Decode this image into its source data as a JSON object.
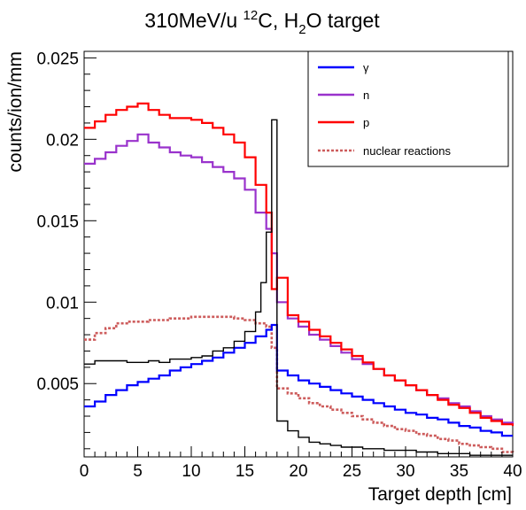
{
  "chart_data": {
    "type": "line",
    "style": "histogram-step",
    "title": {
      "main": "310MeV/u ",
      "c_sup": "12",
      "c_text": "C, H",
      "h_sub": "2",
      "tail": "O target"
    },
    "xlabel": "Target depth [cm]",
    "ylabel": "counts/ion/mm",
    "xlim": [
      0,
      40
    ],
    "ylim": [
      0.0005,
      0.0254
    ],
    "xticks": [
      0,
      5,
      10,
      15,
      20,
      25,
      30,
      35,
      40
    ],
    "xtick_labels": [
      "0",
      "5",
      "10",
      "15",
      "20",
      "25",
      "30",
      "35",
      "40"
    ],
    "yticks": [
      0.005,
      0.01,
      0.015,
      0.02,
      0.025
    ],
    "ytick_labels": [
      "0.005",
      "0.01",
      "0.015",
      "0.02",
      "0.025"
    ],
    "bin_width": 0.5,
    "grid": false,
    "legend_position": "top-right",
    "colors": {
      "gamma": "#0000ff",
      "n": "#9932cc",
      "p": "#ff0000",
      "nuclear": "#cd5c5c",
      "total": "#000000"
    },
    "series": [
      {
        "key": "gamma",
        "name": "γ",
        "bins": [
          [
            0,
            0.0036
          ],
          [
            1,
            0.0039
          ],
          [
            2,
            0.0043
          ],
          [
            3,
            0.0046
          ],
          [
            4,
            0.0049
          ],
          [
            5,
            0.0051
          ],
          [
            6,
            0.0053
          ],
          [
            7,
            0.0055
          ],
          [
            8,
            0.0058
          ],
          [
            9,
            0.006
          ],
          [
            10,
            0.0062
          ],
          [
            11,
            0.0064
          ],
          [
            12,
            0.0066
          ],
          [
            13,
            0.0069
          ],
          [
            14,
            0.0072
          ],
          [
            15,
            0.0075
          ],
          [
            16,
            0.0079
          ],
          [
            17,
            0.0083
          ],
          [
            17.5,
            0.0086
          ],
          [
            18,
            0.0058
          ],
          [
            19,
            0.0055
          ],
          [
            20,
            0.0052
          ],
          [
            21,
            0.005
          ],
          [
            22,
            0.0048
          ],
          [
            23,
            0.0046
          ],
          [
            24,
            0.0044
          ],
          [
            25,
            0.0042
          ],
          [
            26,
            0.004
          ],
          [
            27,
            0.0038
          ],
          [
            28,
            0.0036
          ],
          [
            29,
            0.0034
          ],
          [
            30,
            0.0032
          ],
          [
            31,
            0.0031
          ],
          [
            32,
            0.0029
          ],
          [
            33,
            0.0028
          ],
          [
            34,
            0.0026
          ],
          [
            35,
            0.0024
          ],
          [
            36,
            0.0023
          ],
          [
            37,
            0.0021
          ],
          [
            38,
            0.002
          ],
          [
            39,
            0.0018
          ],
          [
            40,
            0.0018
          ]
        ]
      },
      {
        "key": "n",
        "name": "n",
        "bins": [
          [
            0,
            0.0185
          ],
          [
            1,
            0.0188
          ],
          [
            2,
            0.0192
          ],
          [
            3,
            0.0196
          ],
          [
            4,
            0.0199
          ],
          [
            5,
            0.0203
          ],
          [
            6,
            0.0198
          ],
          [
            7,
            0.0195
          ],
          [
            8,
            0.0192
          ],
          [
            9,
            0.019
          ],
          [
            10,
            0.0189
          ],
          [
            11,
            0.0186
          ],
          [
            12,
            0.0183
          ],
          [
            13,
            0.018
          ],
          [
            14,
            0.0176
          ],
          [
            15,
            0.0169
          ],
          [
            16,
            0.0155
          ],
          [
            17,
            0.0145
          ],
          [
            17.5,
            0.013
          ],
          [
            18,
            0.01
          ],
          [
            19,
            0.009
          ],
          [
            20,
            0.0085
          ],
          [
            21,
            0.008
          ],
          [
            22,
            0.0077
          ],
          [
            23,
            0.0073
          ],
          [
            24,
            0.0069
          ],
          [
            25,
            0.0065
          ],
          [
            26,
            0.0062
          ],
          [
            27,
            0.0059
          ],
          [
            28,
            0.0055
          ],
          [
            29,
            0.0052
          ],
          [
            30,
            0.0049
          ],
          [
            31,
            0.0046
          ],
          [
            32,
            0.0043
          ],
          [
            33,
            0.0041
          ],
          [
            34,
            0.0038
          ],
          [
            35,
            0.0036
          ],
          [
            36,
            0.0033
          ],
          [
            37,
            0.003
          ],
          [
            38,
            0.0028
          ],
          [
            39,
            0.0026
          ],
          [
            40,
            0.0025
          ]
        ]
      },
      {
        "key": "p",
        "name": "p",
        "bins": [
          [
            0,
            0.0207
          ],
          [
            1,
            0.0211
          ],
          [
            2,
            0.0215
          ],
          [
            3,
            0.0218
          ],
          [
            4,
            0.022
          ],
          [
            5,
            0.0222
          ],
          [
            6,
            0.0218
          ],
          [
            7,
            0.0215
          ],
          [
            8,
            0.0213
          ],
          [
            9,
            0.0213
          ],
          [
            10,
            0.0212
          ],
          [
            11,
            0.021
          ],
          [
            12,
            0.0207
          ],
          [
            13,
            0.0203
          ],
          [
            14,
            0.0198
          ],
          [
            15,
            0.0189
          ],
          [
            16,
            0.0172
          ],
          [
            17,
            0.0155
          ],
          [
            17.5,
            0.0108
          ],
          [
            18,
            0.0115
          ],
          [
            19,
            0.0092
          ],
          [
            20,
            0.0088
          ],
          [
            21,
            0.0083
          ],
          [
            22,
            0.0079
          ],
          [
            23,
            0.0075
          ],
          [
            24,
            0.0071
          ],
          [
            25,
            0.0067
          ],
          [
            26,
            0.0063
          ],
          [
            27,
            0.0059
          ],
          [
            28,
            0.0055
          ],
          [
            29,
            0.0052
          ],
          [
            30,
            0.0049
          ],
          [
            31,
            0.0046
          ],
          [
            32,
            0.0043
          ],
          [
            33,
            0.004
          ],
          [
            34,
            0.0037
          ],
          [
            35,
            0.0035
          ],
          [
            36,
            0.0032
          ],
          [
            37,
            0.0029
          ],
          [
            38,
            0.0027
          ],
          [
            39,
            0.0025
          ],
          [
            40,
            0.0024
          ]
        ]
      },
      {
        "key": "nuclear",
        "name": "nuclear reactions",
        "bins": [
          [
            0,
            0.0077
          ],
          [
            1,
            0.0081
          ],
          [
            2,
            0.0084
          ],
          [
            3,
            0.0087
          ],
          [
            4,
            0.0088
          ],
          [
            5,
            0.0088
          ],
          [
            6,
            0.0089
          ],
          [
            7,
            0.0089
          ],
          [
            8,
            0.009
          ],
          [
            9,
            0.009
          ],
          [
            10,
            0.0091
          ],
          [
            11,
            0.0091
          ],
          [
            12,
            0.0091
          ],
          [
            13,
            0.0091
          ],
          [
            14,
            0.009
          ],
          [
            15,
            0.0089
          ],
          [
            16,
            0.0087
          ],
          [
            17,
            0.0085
          ],
          [
            17.5,
            0.0072
          ],
          [
            18,
            0.0047
          ],
          [
            19,
            0.0044
          ],
          [
            20,
            0.0041
          ],
          [
            21,
            0.0038
          ],
          [
            22,
            0.0036
          ],
          [
            23,
            0.0034
          ],
          [
            24,
            0.0032
          ],
          [
            25,
            0.003
          ],
          [
            26,
            0.0028
          ],
          [
            27,
            0.0026
          ],
          [
            28,
            0.0024
          ],
          [
            29,
            0.0022
          ],
          [
            30,
            0.0021
          ],
          [
            31,
            0.0019
          ],
          [
            32,
            0.0018
          ],
          [
            33,
            0.0016
          ],
          [
            34,
            0.0015
          ],
          [
            35,
            0.0013
          ],
          [
            36,
            0.0012
          ],
          [
            37,
            0.0011
          ],
          [
            38,
            0.001
          ],
          [
            39,
            0.0008
          ],
          [
            40,
            0.0007
          ]
        ]
      },
      {
        "key": "total",
        "name": "",
        "bins": [
          [
            0,
            0.0062
          ],
          [
            1,
            0.0064
          ],
          [
            2,
            0.0064
          ],
          [
            3,
            0.0064
          ],
          [
            4,
            0.0063
          ],
          [
            5,
            0.0063
          ],
          [
            6,
            0.0064
          ],
          [
            7,
            0.0063
          ],
          [
            8,
            0.0065
          ],
          [
            9,
            0.0065
          ],
          [
            10,
            0.0066
          ],
          [
            11,
            0.0067
          ],
          [
            12,
            0.007
          ],
          [
            13,
            0.0072
          ],
          [
            14,
            0.0076
          ],
          [
            15,
            0.0082
          ],
          [
            16,
            0.0094
          ],
          [
            16.5,
            0.0112
          ],
          [
            17,
            0.0143
          ],
          [
            17.5,
            0.0212
          ],
          [
            18,
            0.0027
          ],
          [
            19,
            0.0021
          ],
          [
            20,
            0.0017
          ],
          [
            21,
            0.0014
          ],
          [
            22,
            0.0013
          ],
          [
            23,
            0.0012
          ],
          [
            24,
            0.0011
          ],
          [
            25,
            0.0011
          ],
          [
            26,
            0.001
          ],
          [
            27,
            0.001
          ],
          [
            28,
            0.0009
          ],
          [
            29,
            0.0009
          ],
          [
            30,
            0.0009
          ],
          [
            31,
            0.0008
          ],
          [
            32,
            0.0008
          ],
          [
            33,
            0.0007
          ],
          [
            34,
            0.0007
          ],
          [
            35,
            0.0007
          ],
          [
            36,
            0.0006
          ],
          [
            37,
            0.0006
          ],
          [
            38,
            0.0006
          ],
          [
            39,
            0.0006
          ],
          [
            40,
            0.0006
          ]
        ]
      }
    ]
  }
}
